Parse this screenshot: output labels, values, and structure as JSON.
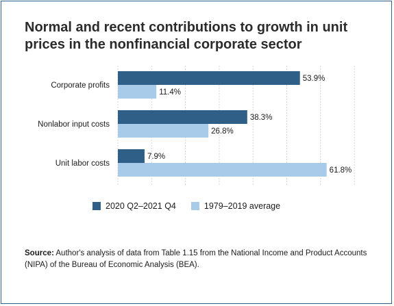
{
  "colors": {
    "series1": "#2f5f86",
    "series2": "#a9cbea",
    "frame": "#2f5f8a",
    "grid": "#d5d5d5"
  },
  "title": "Normal and recent contributions to growth in unit prices in the nonfinancial corporate sector",
  "source": {
    "label": "Source:",
    "text": "Author's analysis of data from Table 1.15 from the National Income and Product Accounts (NIPA) of the Bureau of Economic Analysis (BEA)."
  },
  "chart_data": {
    "type": "bar",
    "orientation": "horizontal",
    "categories": [
      "Corporate profits",
      "Nonlabor input costs",
      "Unit labor costs"
    ],
    "series": [
      {
        "name": "2020 Q2–2021 Q4",
        "values": [
          53.9,
          38.3,
          7.9
        ],
        "labels": [
          "53.9%",
          "38.3%",
          "7.9%"
        ]
      },
      {
        "name": "1979–2019 average",
        "values": [
          11.4,
          26.8,
          61.8
        ],
        "labels": [
          "11.4%",
          "26.8%",
          "61.8%"
        ]
      }
    ],
    "xlim": [
      0,
      70
    ],
    "grid": true,
    "legend": "bottom"
  }
}
